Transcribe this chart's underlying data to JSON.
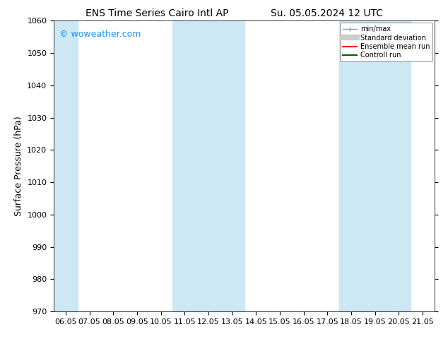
{
  "title_left": "ENS Time Series Cairo Intl AP",
  "title_right": "Su. 05.05.2024 12 UTC",
  "ylabel": "Surface Pressure (hPa)",
  "ylim": [
    970,
    1060
  ],
  "yticks": [
    970,
    980,
    990,
    1000,
    1010,
    1020,
    1030,
    1040,
    1050,
    1060
  ],
  "xtick_labels": [
    "06.05",
    "07.05",
    "08.05",
    "09.05",
    "10.05",
    "11.05",
    "12.05",
    "13.05",
    "14.05",
    "15.05",
    "16.05",
    "17.05",
    "18.05",
    "19.05",
    "20.05",
    "21.05"
  ],
  "shaded_bands": [
    {
      "xmin": 0,
      "xmax": 1
    },
    {
      "xmin": 5,
      "xmax": 7
    },
    {
      "xmin": 12,
      "xmax": 14
    }
  ],
  "shaded_color": "#cce8f5",
  "background_color": "#ffffff",
  "plot_bg_color": "#ffffff",
  "watermark_text": "© woweather.com",
  "watermark_color": "#1e90ff",
  "legend_entries": [
    {
      "label": "min/max"
    },
    {
      "label": "Standard deviation"
    },
    {
      "label": "Ensemble mean run"
    },
    {
      "label": "Controll run"
    }
  ],
  "title_fontsize": 10,
  "tick_label_fontsize": 8,
  "ylabel_fontsize": 9,
  "watermark_fontsize": 9,
  "spine_color": "#333333"
}
